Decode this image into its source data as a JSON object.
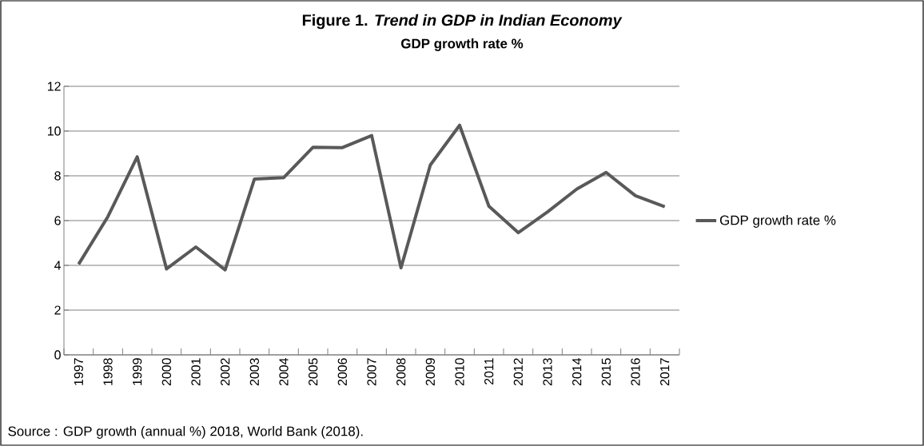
{
  "chart_data": {
    "type": "line",
    "title": "Figure 1. *Trend in GDP in Indian Economy*",
    "subtitle": "GDP growth rate %",
    "categories": [
      "1997",
      "1998",
      "1999",
      "2000",
      "2001",
      "2002",
      "2003",
      "2004",
      "2005",
      "2006",
      "2007",
      "2008",
      "2009",
      "2010",
      "2011",
      "2012",
      "2013",
      "2014",
      "2015",
      "2016",
      "2017"
    ],
    "series": [
      {
        "name": "GDP growth rate %",
        "color": "#595959",
        "values": [
          4.05,
          6.18,
          8.85,
          3.84,
          4.82,
          3.8,
          7.86,
          7.92,
          9.28,
          9.26,
          9.8,
          3.89,
          8.48,
          10.26,
          6.64,
          5.46,
          6.39,
          7.41,
          8.15,
          7.11,
          6.62
        ]
      }
    ],
    "ylim": [
      0,
      12
    ],
    "yticks": [
      0,
      2,
      4,
      6,
      8,
      10,
      12
    ],
    "grid": "y",
    "legend": "right",
    "marker": "none",
    "line_style": "solid",
    "annotations": [
      "Source : GDP growth (annual %) 2018, World Bank (2018)."
    ]
  }
}
